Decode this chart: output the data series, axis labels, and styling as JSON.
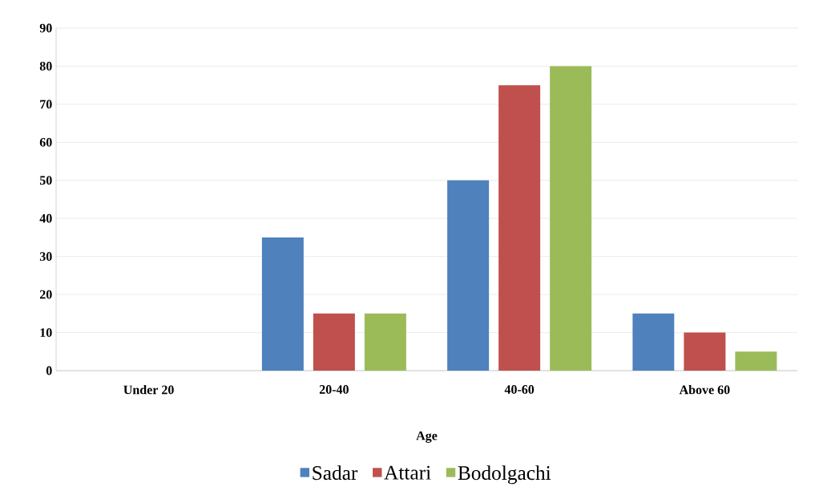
{
  "chart_data": {
    "type": "bar",
    "xlabel": "Age",
    "categories": [
      "Under 20",
      "20-40",
      "40-60",
      "Above 60"
    ],
    "series": [
      {
        "name": "Sadar",
        "color": "#4f81bd",
        "values": [
          0,
          35,
          50,
          15
        ]
      },
      {
        "name": "Attari",
        "color": "#c0504d",
        "values": [
          0,
          15,
          75,
          10
        ]
      },
      {
        "name": "Bodolgachi",
        "color": "#9bbb59",
        "values": [
          0,
          15,
          80,
          5
        ]
      }
    ],
    "ylim": [
      0,
      90
    ],
    "yticks": [
      0,
      10,
      20,
      30,
      40,
      50,
      60,
      70,
      80,
      90
    ],
    "grid": "y",
    "legend": "bottom"
  }
}
